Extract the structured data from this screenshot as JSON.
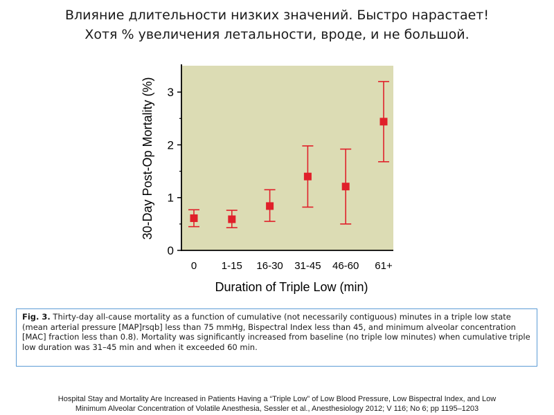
{
  "slide": {
    "title_line1": "Влияние длительности низких значений. Быстро нарастает!",
    "title_line2": "Хотя % увеличения летальности, вроде, и не большой."
  },
  "chart_data": {
    "type": "scatter",
    "xlabel": "Duration of Triple Low (min)",
    "ylabel": "30-Day Post-Op Mortality (%)",
    "categories": [
      "0",
      "1-15",
      "16-30",
      "31-45",
      "46-60",
      "61+"
    ],
    "values": [
      0.61,
      0.59,
      0.84,
      1.4,
      1.21,
      2.44
    ],
    "error_low": [
      0.45,
      0.43,
      0.55,
      0.82,
      0.5,
      1.68
    ],
    "error_high": [
      0.77,
      0.76,
      1.15,
      1.98,
      1.92,
      3.2
    ],
    "ylim": [
      0,
      3.5
    ],
    "yticks": [
      0,
      1,
      2,
      3
    ],
    "colors": {
      "plot_background": "#dcdcb4",
      "marker": "#e0202a",
      "axis": "#000000"
    },
    "grid": false
  },
  "caption": {
    "label": "Fig. 3.",
    "text": " Thirty-day all-cause mortality as a function of cumulative (not necessarily contiguous) minutes in a triple low state (mean arterial pressure [MAP]rsqb] less than 75 mmHg, Bispectral Index less than 45, and minimum alveolar concentration [MAC] fraction less than 0.8). Mortality was significantly increased from baseline (no triple low minutes) when cumulative triple low duration was 31–45 min and when it exceeded 60 min."
  },
  "source": {
    "line1": "Hospital Stay and Mortality Are Increased in Patients Having a “Triple Low” of Low Blood Pressure, Low Bispectral Index, and Low",
    "line2": "Minimum Alveolar Concentration of Volatile Anesthesia, Sessler et al., Anesthesiology 2012; V 116; No 6; pp 1195–1203"
  }
}
